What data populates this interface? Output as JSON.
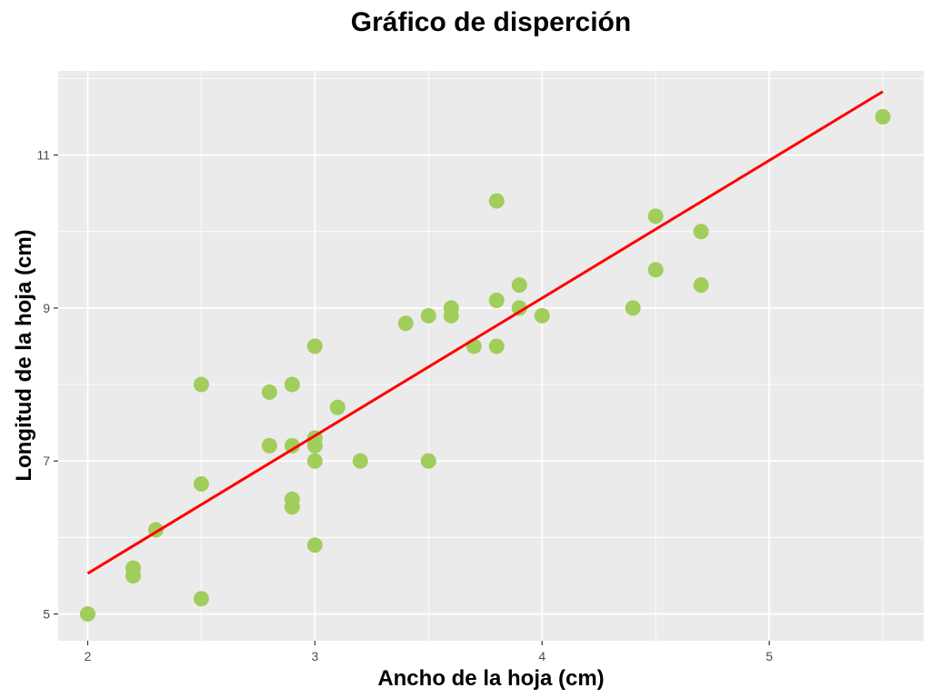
{
  "chart_data": {
    "type": "scatter",
    "title": "Gráfico de disperción",
    "xlabel": "Ancho de la hoja (cm)",
    "ylabel": "Longitud de la hoja (cm)",
    "xlim": [
      1.87,
      5.68
    ],
    "ylim": [
      4.65,
      12.1
    ],
    "x_ticks": [
      2,
      3,
      4,
      5
    ],
    "y_ticks": [
      5,
      7,
      9,
      11
    ],
    "x_tick_labels": [
      "2",
      "3",
      "4",
      "5"
    ],
    "y_tick_labels": [
      "5",
      "7",
      "9",
      "11"
    ],
    "grid": true,
    "legend": "none",
    "point_color": "#a1cd5b",
    "line_color": "#ff0000",
    "panel_color": "#ebebeb",
    "series": [
      {
        "points": [
          [
            2.0,
            5.0
          ],
          [
            2.2,
            5.5
          ],
          [
            2.2,
            5.6
          ],
          [
            2.3,
            6.1
          ],
          [
            2.5,
            5.2
          ],
          [
            2.5,
            6.7
          ],
          [
            2.5,
            8.0
          ],
          [
            2.8,
            7.2
          ],
          [
            2.8,
            7.9
          ],
          [
            2.9,
            6.4
          ],
          [
            2.9,
            6.5
          ],
          [
            2.9,
            7.2
          ],
          [
            2.9,
            8.0
          ],
          [
            3.0,
            5.9
          ],
          [
            3.0,
            7.0
          ],
          [
            3.0,
            7.2
          ],
          [
            3.0,
            7.3
          ],
          [
            3.0,
            8.5
          ],
          [
            3.1,
            7.7
          ],
          [
            3.2,
            7.0
          ],
          [
            3.4,
            8.8
          ],
          [
            3.5,
            7.0
          ],
          [
            3.5,
            8.9
          ],
          [
            3.6,
            8.9
          ],
          [
            3.6,
            9.0
          ],
          [
            3.7,
            8.5
          ],
          [
            3.8,
            8.5
          ],
          [
            3.8,
            9.1
          ],
          [
            3.8,
            10.4
          ],
          [
            3.9,
            9.0
          ],
          [
            3.9,
            9.3
          ],
          [
            4.0,
            8.9
          ],
          [
            4.4,
            9.0
          ],
          [
            4.5,
            9.5
          ],
          [
            4.5,
            10.2
          ],
          [
            4.7,
            9.3
          ],
          [
            4.7,
            10.0
          ],
          [
            5.5,
            11.5
          ]
        ]
      }
    ],
    "trend_line": {
      "x": [
        2.0,
        5.5
      ],
      "y": [
        5.53,
        11.83
      ]
    }
  }
}
